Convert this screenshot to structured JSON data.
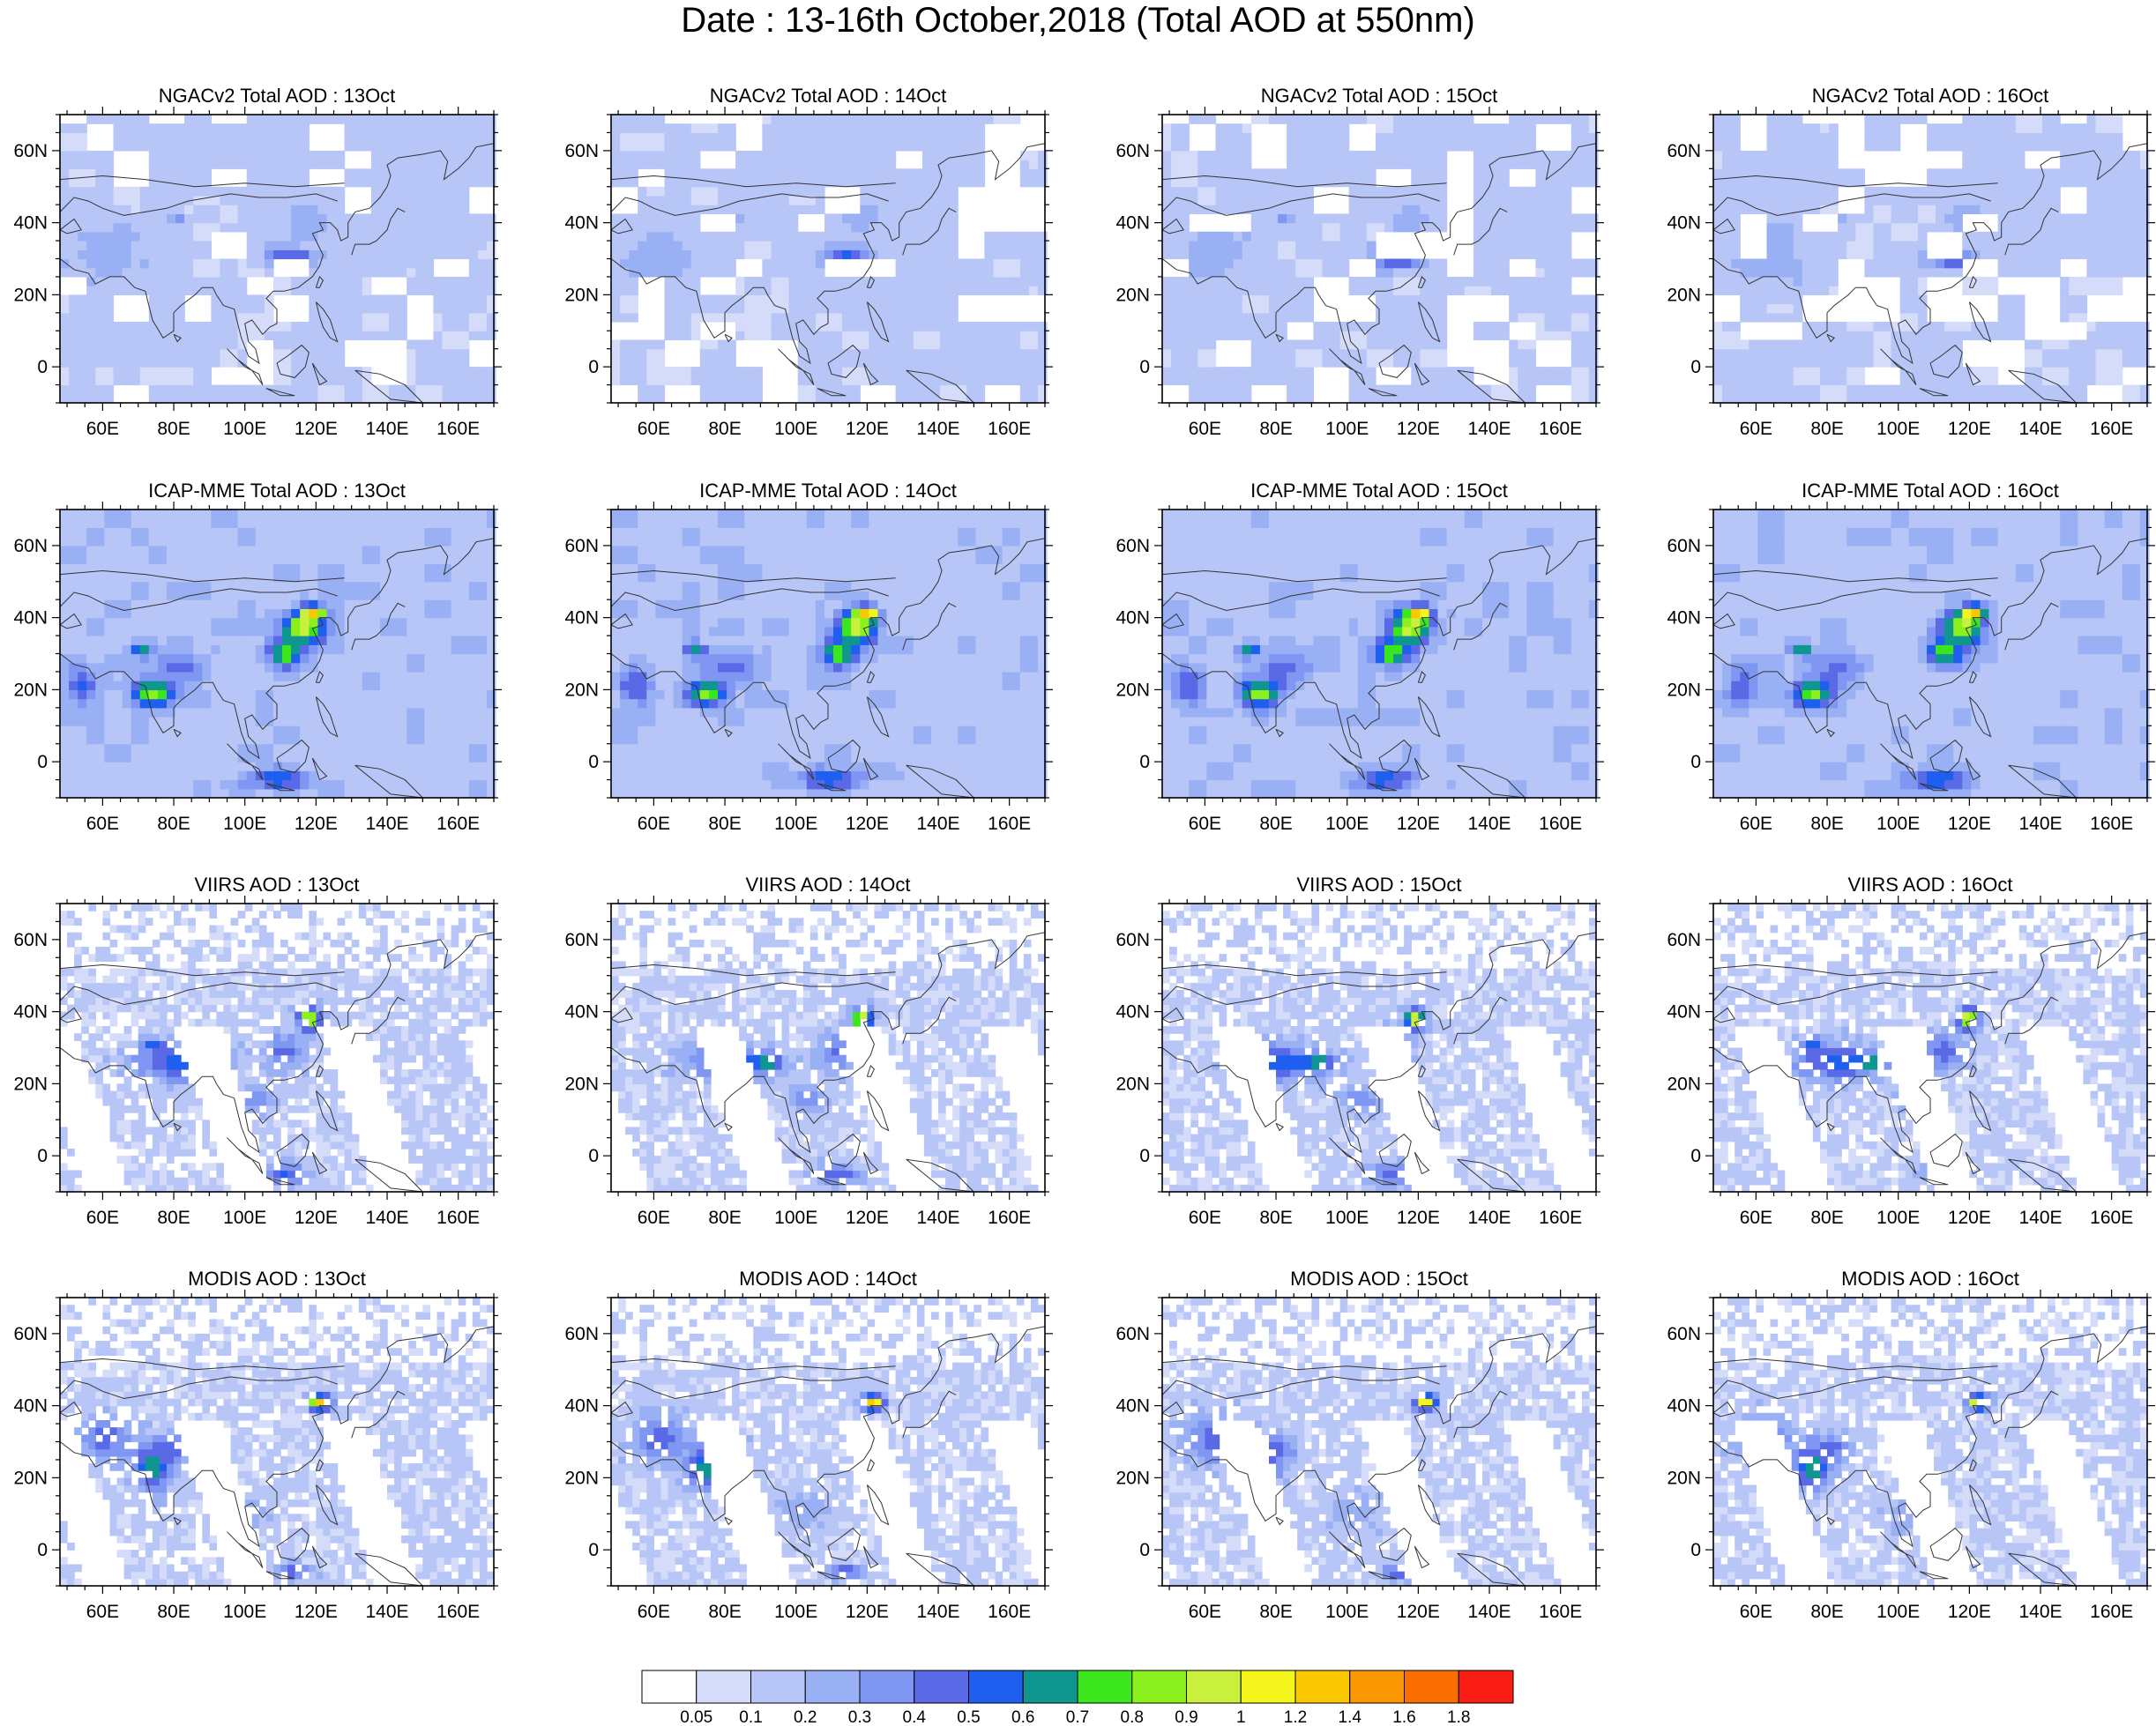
{
  "title": "Date : 13-16th October,2018 (Total AOD at 550nm)",
  "chart_data": {
    "type": "heatmap",
    "layout": {
      "rows": 4,
      "cols": 4
    },
    "x_ticks": [
      "60E",
      "80E",
      "100E",
      "120E",
      "140E",
      "160E"
    ],
    "x_tick_values": [
      60,
      80,
      100,
      120,
      140,
      160
    ],
    "y_ticks": [
      "60N",
      "40N",
      "20N",
      "0"
    ],
    "y_tick_values": [
      60,
      40,
      20,
      0
    ],
    "xlim": [
      48,
      170
    ],
    "ylim": [
      -10,
      70
    ],
    "panels": [
      {
        "title": "NGACv2 Total AOD : 13Oct",
        "product": "ngac",
        "day": 13
      },
      {
        "title": "NGACv2 Total AOD : 14Oct",
        "product": "ngac",
        "day": 14
      },
      {
        "title": "NGACv2 Total AOD : 15Oct",
        "product": "ngac",
        "day": 15
      },
      {
        "title": "NGACv2 Total AOD : 16Oct",
        "product": "ngac",
        "day": 16
      },
      {
        "title": "ICAP-MME Total AOD : 13Oct",
        "product": "icap",
        "day": 13
      },
      {
        "title": "ICAP-MME Total AOD : 14Oct",
        "product": "icap",
        "day": 14
      },
      {
        "title": "ICAP-MME Total AOD : 15Oct",
        "product": "icap",
        "day": 15
      },
      {
        "title": "ICAP-MME Total AOD : 16Oct",
        "product": "icap",
        "day": 16
      },
      {
        "title": "VIIRS AOD : 13Oct",
        "product": "viirs",
        "day": 13
      },
      {
        "title": "VIIRS AOD : 14Oct",
        "product": "viirs",
        "day": 14
      },
      {
        "title": "VIIRS AOD : 15Oct",
        "product": "viirs",
        "day": 15
      },
      {
        "title": "VIIRS AOD : 16Oct",
        "product": "viirs",
        "day": 16
      },
      {
        "title": "MODIS AOD : 13Oct",
        "product": "modis",
        "day": 13
      },
      {
        "title": "MODIS AOD : 14Oct",
        "product": "modis",
        "day": 14
      },
      {
        "title": "MODIS AOD : 15Oct",
        "product": "modis",
        "day": 15
      },
      {
        "title": "MODIS AOD : 16Oct",
        "product": "modis",
        "day": 16
      }
    ],
    "colorbar": {
      "labels": [
        "0.05",
        "0.1",
        "0.2",
        "0.3",
        "0.4",
        "0.5",
        "0.6",
        "0.7",
        "0.8",
        "0.9",
        "1",
        "1.2",
        "1.4",
        "1.6",
        "1.8"
      ],
      "thresholds": [
        0.05,
        0.1,
        0.2,
        0.3,
        0.4,
        0.5,
        0.6,
        0.7,
        0.8,
        0.9,
        1,
        1.2,
        1.4,
        1.6,
        1.8
      ],
      "colors": [
        "#ffffff",
        "#d4dcfa",
        "#b7c5f7",
        "#9ab0f5",
        "#7f97f2",
        "#5a69e6",
        "#1f5ff0",
        "#0f9690",
        "#3ce61e",
        "#8cf01e",
        "#c8f03c",
        "#f5f51e",
        "#fac800",
        "#fa9600",
        "#fa6e00",
        "#fa1e14"
      ]
    },
    "hotspots": {
      "ngac": [
        {
          "lon": 112,
          "lat": 29,
          "rx": 7,
          "ry": 3,
          "aod": 0.55
        },
        {
          "lon": 80,
          "lat": 40,
          "rx": 2.5,
          "ry": 1.5,
          "aod": 0.35
        },
        {
          "lon": 60,
          "lat": 30,
          "rx": 12,
          "ry": 9,
          "aod": 0.25
        },
        {
          "lon": 116,
          "lat": 40,
          "rx": 5,
          "ry": 4,
          "aod": 0.3
        },
        {
          "lon": 100,
          "lat": 55,
          "rx": 30,
          "ry": 6,
          "aod": 0.2
        },
        {
          "lon": 140,
          "lat": 45,
          "rx": 20,
          "ry": 15,
          "aod": 0.18
        }
      ],
      "icap": [
        {
          "lon": 115,
          "lat": 36,
          "rx": 6,
          "ry": 5,
          "aod": 0.95
        },
        {
          "lon": 110,
          "lat": 29,
          "rx": 5,
          "ry": 4,
          "aod": 0.8
        },
        {
          "lon": 118,
          "lat": 40,
          "rx": 3,
          "ry": 2,
          "aod": 1.35
        },
        {
          "lon": 73,
          "lat": 18,
          "rx": 6,
          "ry": 4,
          "aod": 0.85
        },
        {
          "lon": 80,
          "lat": 25,
          "rx": 8,
          "ry": 5,
          "aod": 0.45
        },
        {
          "lon": 70,
          "lat": 30,
          "rx": 3,
          "ry": 2,
          "aod": 0.7
        },
        {
          "lon": 53,
          "lat": 20,
          "rx": 5,
          "ry": 6,
          "aod": 0.5
        },
        {
          "lon": 108,
          "lat": -6,
          "rx": 9,
          "ry": 3,
          "aod": 0.6
        },
        {
          "lon": 78,
          "lat": 40,
          "rx": 12,
          "ry": 4,
          "aod": 0.18
        }
      ],
      "viirs": [
        {
          "lon": 117,
          "lat": 37,
          "rx": 3,
          "ry": 3,
          "aod": 1.05
        },
        {
          "lon": 110,
          "lat": 28,
          "rx": 6,
          "ry": 5,
          "aod": 0.45
        },
        {
          "lon": 80,
          "lat": 25,
          "rx": 12,
          "ry": 5,
          "aod": 0.55
        },
        {
          "lon": 90,
          "lat": 25,
          "rx": 4,
          "ry": 2,
          "aod": 0.75
        },
        {
          "lon": 73,
          "lat": 30,
          "rx": 3,
          "ry": 2,
          "aod": 0.6
        },
        {
          "lon": 102,
          "lat": 15,
          "rx": 5,
          "ry": 4,
          "aod": 0.4
        },
        {
          "lon": 110,
          "lat": -6,
          "rx": 6,
          "ry": 3,
          "aod": 0.5
        }
      ],
      "modis": [
        {
          "lon": 120,
          "lat": 40,
          "rx": 3,
          "ry": 2,
          "aod": 1.25
        },
        {
          "lon": 73,
          "lat": 22,
          "rx": 5,
          "ry": 6,
          "aod": 0.7
        },
        {
          "lon": 60,
          "lat": 30,
          "rx": 8,
          "ry": 7,
          "aod": 0.45
        },
        {
          "lon": 78,
          "lat": 27,
          "rx": 6,
          "ry": 4,
          "aod": 0.45
        },
        {
          "lon": 112,
          "lat": -7,
          "rx": 5,
          "ry": 2,
          "aod": 0.5
        },
        {
          "lon": 100,
          "lat": 10,
          "rx": 8,
          "ry": 6,
          "aod": 0.25
        }
      ]
    }
  }
}
